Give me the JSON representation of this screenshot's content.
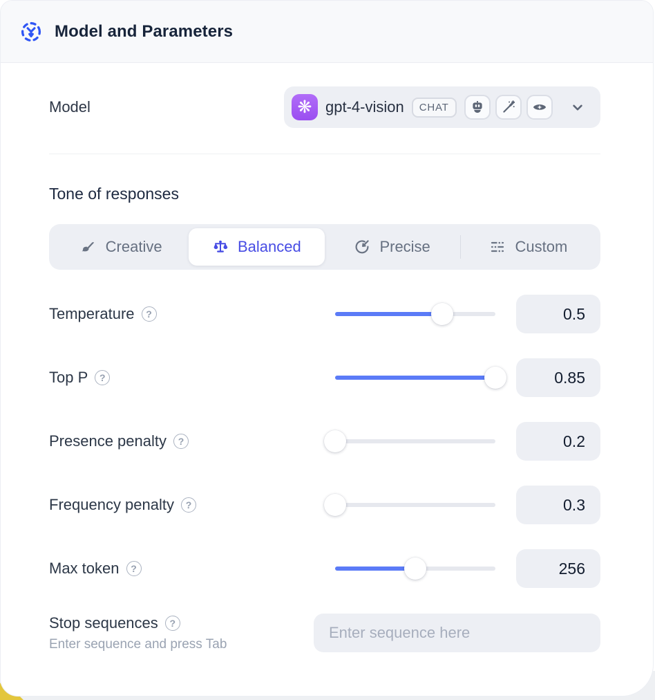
{
  "header": {
    "title": "Model and Parameters",
    "icon": "model-ai-icon"
  },
  "model": {
    "label": "Model",
    "selected_model": "gpt-4-vision",
    "provider": "openai",
    "type_badge": "CHAT",
    "capability_icons": [
      "robot-icon",
      "magic-wand-icon",
      "vision-eye-icon"
    ]
  },
  "tone": {
    "label": "Tone of responses",
    "options": [
      {
        "label": "Creative",
        "icon": "paintbrush-icon",
        "selected": false
      },
      {
        "label": "Balanced",
        "icon": "balance-scale-icon",
        "selected": true
      },
      {
        "label": "Precise",
        "icon": "target-icon",
        "selected": false
      },
      {
        "label": "Custom",
        "icon": "sliders-icon",
        "selected": false
      }
    ]
  },
  "parameters": [
    {
      "label": "Temperature",
      "value": "0.5",
      "fill_percent": 67
    },
    {
      "label": "Top P",
      "value": "0.85",
      "fill_percent": 100
    },
    {
      "label": "Presence penalty",
      "value": "0.2",
      "fill_percent": 0
    },
    {
      "label": "Frequency penalty",
      "value": "0.3",
      "fill_percent": 0
    },
    {
      "label": "Max token",
      "value": "256",
      "fill_percent": 50
    }
  ],
  "stop_sequences": {
    "label": "Stop sequences",
    "hint": "Enter sequence and press Tab",
    "placeholder": "Enter sequence here"
  },
  "help_glyph": "?",
  "colors": {
    "accent_slider_blue": "#5b7bf7",
    "selected_tone_indigo": "#474ce4",
    "header_icon_blue": "#3056f5",
    "provider_purple": "#a55ef6",
    "control_background": "#edeff4",
    "header_background": "#f8f9fb"
  }
}
